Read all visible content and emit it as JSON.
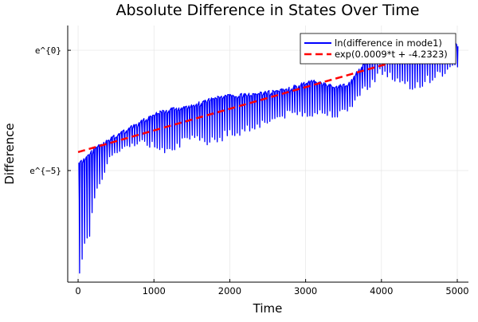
{
  "chart_data": {
    "type": "line",
    "title": "Absolute Difference in States Over Time",
    "xlabel": "Time",
    "ylabel": "Difference",
    "xlim": [
      -137,
      5147
    ],
    "ylim": [
      -9.64,
      1.03
    ],
    "x_ticks": [
      {
        "value": 0,
        "label": "0"
      },
      {
        "value": 1000,
        "label": "1000"
      },
      {
        "value": 2000,
        "label": "2000"
      },
      {
        "value": 3000,
        "label": "3000"
      },
      {
        "value": 4000,
        "label": "4000"
      },
      {
        "value": 5000,
        "label": "5000"
      }
    ],
    "y_ticks": [
      {
        "value": 0,
        "label": "e^{0}"
      },
      {
        "value": -5,
        "label": "e^{−5}"
      }
    ],
    "grid": true,
    "legend_position": "top-right",
    "series": [
      {
        "name": "ln(difference in mode1)",
        "color": "#0000ff",
        "style": "solid",
        "oscillation_period": 33,
        "upper_envelope": {
          "t": [
            10,
            250,
            670,
            1090,
            1620,
            1790,
            2670,
            3120,
            3360,
            3570,
            3750,
            4010,
            4240,
            4980
          ],
          "y": [
            -4.6,
            -3.94,
            -3.15,
            -2.48,
            -2.12,
            -1.89,
            -1.62,
            -1.19,
            -1.46,
            -1.32,
            -0.56,
            0.76,
            0.2,
            0.33
          ]
        },
        "lower_envelope": {
          "t": [
            20,
            60,
            150,
            180,
            240,
            340,
            420,
            780,
            1140,
            1440,
            1720,
            2070,
            2490,
            2770,
            3510,
            3720,
            4000,
            4350,
            4870,
            4990
          ],
          "y": [
            -9.4,
            -8.3,
            -8.3,
            -7.4,
            -6.1,
            -5.1,
            -4.5,
            -3.9,
            -4.27,
            -3.97,
            -3.94,
            -3.64,
            -3.11,
            -2.78,
            -2.78,
            -1.89,
            -1.06,
            -1.82,
            -0.99,
            -0.73
          ]
        }
      },
      {
        "name": "exp(0.0009*t + -4.2323)",
        "color": "#ff0000",
        "style": "dashed",
        "slope": 0.0009,
        "intercept": -4.2323,
        "t_range": [
          0,
          4100
        ]
      }
    ]
  }
}
